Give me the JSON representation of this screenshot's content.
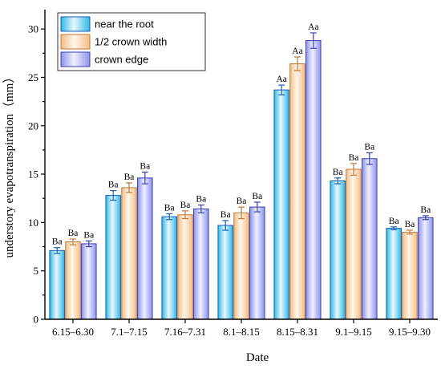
{
  "chart_data": {
    "type": "bar",
    "xlabel": "Date",
    "ylabel": "understory evapotranspiration（mm）",
    "ylim": [
      0,
      32
    ],
    "yticks": [
      0,
      5,
      10,
      15,
      20,
      25,
      30
    ],
    "grid": false,
    "legend_position": "top-left",
    "categories": [
      "6.15–6.30",
      "7.1–7.15",
      "7.16–7.31",
      "8.1–8.15",
      "8.15–8.31",
      "9.1–9.15",
      "9.15–9.30"
    ],
    "series": [
      {
        "name": "near the root",
        "values": [
          7.1,
          12.8,
          10.6,
          9.7,
          23.7,
          14.3,
          9.4
        ],
        "errors": [
          0.3,
          0.5,
          0.3,
          0.5,
          0.5,
          0.3,
          0.15
        ],
        "labels": [
          "Ba",
          "Ba",
          "Ba",
          "Ba",
          "Aa",
          "Ba",
          "Ba"
        ],
        "color": "#3fc8ec",
        "stroke": "#1a5fb0",
        "gradient": [
          "#e8f8ff",
          "#2fb8e6"
        ]
      },
      {
        "name": "1/2 crown width",
        "values": [
          8.0,
          13.6,
          10.8,
          11.0,
          26.4,
          15.5,
          9.0
        ],
        "errors": [
          0.3,
          0.5,
          0.4,
          0.6,
          0.7,
          0.6,
          0.2
        ],
        "labels": [
          "Ba",
          "Ba",
          "Ba",
          "Ba",
          "Aa",
          "Ba",
          "Ba"
        ],
        "color": "#f4c99a",
        "stroke": "#c07a3a",
        "gradient": [
          "#fff6ea",
          "#f2bd86"
        ]
      },
      {
        "name": "crown edge",
        "values": [
          7.8,
          14.6,
          11.4,
          11.6,
          28.8,
          16.6,
          10.5
        ],
        "errors": [
          0.3,
          0.6,
          0.4,
          0.5,
          0.8,
          0.6,
          0.2
        ],
        "labels": [
          "Ba",
          "Ba",
          "Ba",
          "Ba",
          "Aa",
          "Ba",
          "Ba"
        ],
        "color": "#9aa0f0",
        "stroke": "#3a3fb0",
        "gradient": [
          "#f0f0ff",
          "#8d92ec"
        ]
      }
    ]
  }
}
